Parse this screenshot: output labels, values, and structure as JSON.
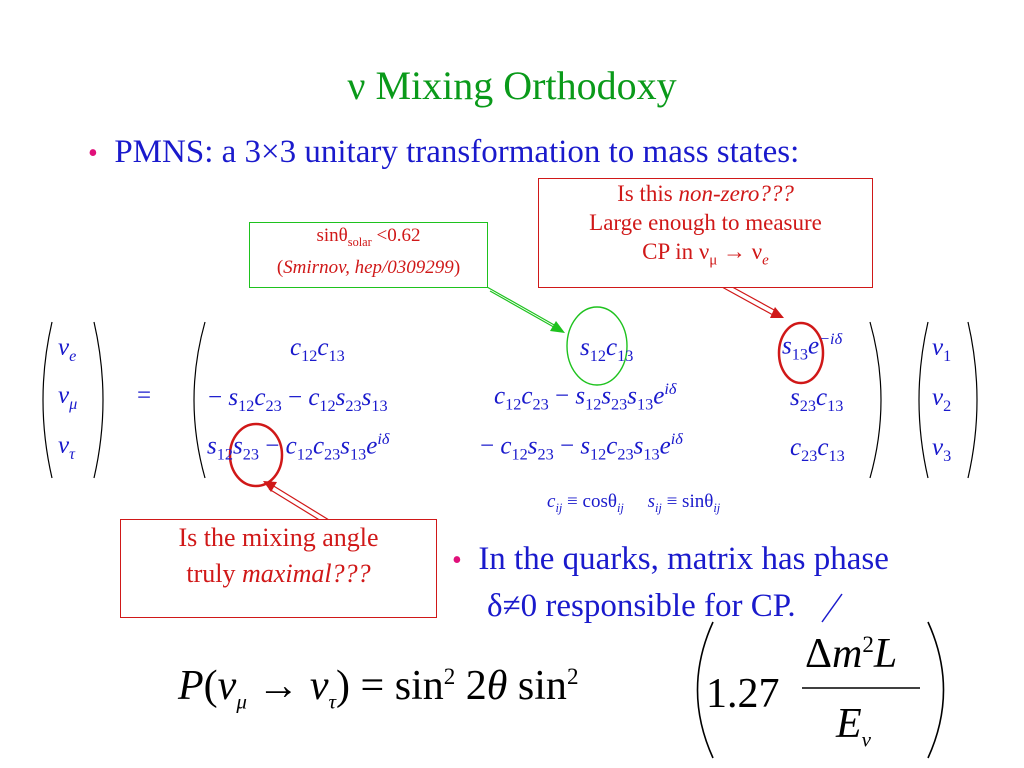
{
  "title": "ν Mixing Orthodoxy",
  "bullets": {
    "pmns": "PMNS:  a 3×3 unitary transformation to mass states:",
    "quarks_line1": "In the quarks, matrix has phase",
    "quarks_line2": "δ≠0 responsible for CP."
  },
  "callouts": {
    "solar": {
      "line1_pre": "sinθ",
      "line1_sub": "solar",
      "line1_post": " <0.62",
      "line2_pre": "(",
      "line2_ref": "Smirnov, hep/0309299",
      "line2_post": ")"
    },
    "theta13": {
      "line1_pre": "Is this ",
      "line1_em": "non-zero???",
      "line2": "Large enough to measure",
      "line3_pre": "CP in ν",
      "line3_sub1": "μ",
      "line3_mid": " → ν",
      "line3_sub2": "e"
    },
    "mixing": {
      "line1": "Is the mixing angle",
      "line2_pre": "truly ",
      "line2_em": "maximal???"
    }
  },
  "legend": {
    "c": "c",
    "c_sub": "ij",
    "c_eq": " ≡ cosθ",
    "c_sub2": "ij",
    "s": "s",
    "s_sub": "ij",
    "s_eq": " ≡ sinθ",
    "s_sub2": "ij"
  },
  "colors": {
    "title": "#0a9a1a",
    "text": "#1a1acc",
    "callout_red": "#d01818",
    "callout_green": "#1ec21e",
    "bullet_dot": "#e0107a"
  }
}
